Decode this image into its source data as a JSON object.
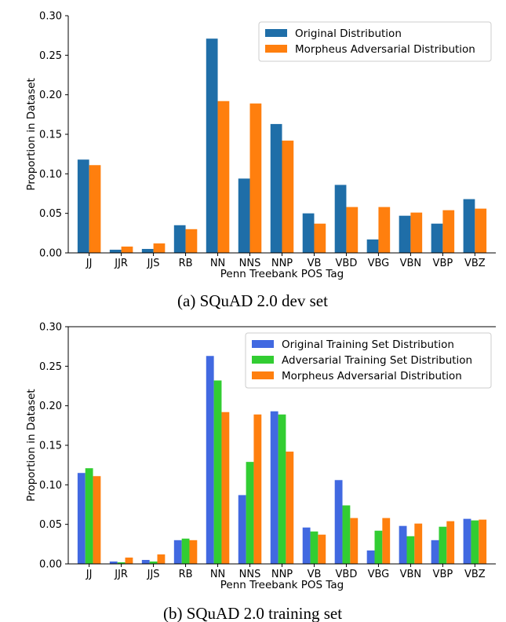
{
  "chart_data": [
    {
      "type": "bar",
      "caption": "(a) SQuAD 2.0 dev set",
      "categories": [
        "JJ",
        "JJR",
        "JJS",
        "RB",
        "NN",
        "NNS",
        "NNP",
        "VB",
        "VBD",
        "VBG",
        "VBN",
        "VBP",
        "VBZ"
      ],
      "series": [
        {
          "name": "Original Distribution",
          "color": "#1f6ea8",
          "values": [
            0.118,
            0.004,
            0.005,
            0.035,
            0.271,
            0.094,
            0.163,
            0.05,
            0.086,
            0.017,
            0.047,
            0.037,
            0.068
          ]
        },
        {
          "name": "Morpheus Adversarial Distribution",
          "color": "#ff7f0e",
          "values": [
            0.111,
            0.008,
            0.012,
            0.03,
            0.192,
            0.189,
            0.142,
            0.037,
            0.058,
            0.058,
            0.051,
            0.054,
            0.056
          ]
        }
      ],
      "xlabel": "Penn Treebank POS Tag",
      "ylabel": "Proportion in Dataset",
      "ylim": [
        0,
        0.3
      ],
      "yticks": [
        0.0,
        0.05,
        0.1,
        0.15,
        0.2,
        0.25,
        0.3
      ],
      "ytick_labels": [
        "0.00",
        "0.05",
        "0.10",
        "0.15",
        "0.20",
        "0.25",
        "0.30"
      ],
      "legend_position": "top-right",
      "grid": false
    },
    {
      "type": "bar",
      "caption": "(b) SQuAD 2.0 training set",
      "categories": [
        "JJ",
        "JJR",
        "JJS",
        "RB",
        "NN",
        "NNS",
        "NNP",
        "VB",
        "VBD",
        "VBG",
        "VBN",
        "VBP",
        "VBZ"
      ],
      "series": [
        {
          "name": "Original Training Set Distribution",
          "color": "#4169e1",
          "values": [
            0.115,
            0.003,
            0.005,
            0.03,
            0.263,
            0.087,
            0.193,
            0.046,
            0.106,
            0.017,
            0.048,
            0.03,
            0.057
          ]
        },
        {
          "name": "Adversarial Training Set Distribution",
          "color": "#32cd32",
          "values": [
            0.121,
            0.002,
            0.003,
            0.032,
            0.232,
            0.129,
            0.189,
            0.041,
            0.074,
            0.042,
            0.035,
            0.047,
            0.055
          ]
        },
        {
          "name": "Morpheus Adversarial Distribution",
          "color": "#ff7f0e",
          "values": [
            0.111,
            0.008,
            0.012,
            0.03,
            0.192,
            0.189,
            0.142,
            0.037,
            0.058,
            0.058,
            0.051,
            0.054,
            0.056
          ]
        }
      ],
      "xlabel": "Penn Treebank POS Tag",
      "ylabel": "Proportion in Dataset",
      "ylim": [
        0,
        0.3
      ],
      "yticks": [
        0.0,
        0.05,
        0.1,
        0.15,
        0.2,
        0.25,
        0.3
      ],
      "ytick_labels": [
        "0.00",
        "0.05",
        "0.10",
        "0.15",
        "0.20",
        "0.25",
        "0.30"
      ],
      "legend_position": "top-right",
      "grid": false
    }
  ]
}
